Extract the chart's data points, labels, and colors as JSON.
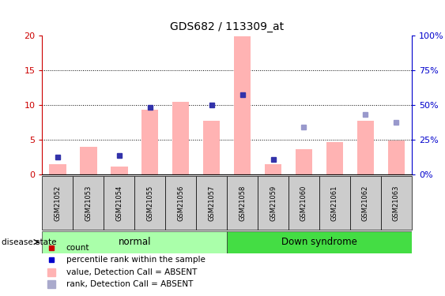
{
  "title": "GDS682 / 113309_at",
  "samples": [
    "GSM21052",
    "GSM21053",
    "GSM21054",
    "GSM21055",
    "GSM21056",
    "GSM21057",
    "GSM21058",
    "GSM21059",
    "GSM21060",
    "GSM21061",
    "GSM21062",
    "GSM21063"
  ],
  "bar_values": [
    1.5,
    4.0,
    1.2,
    9.3,
    10.5,
    7.8,
    19.9,
    1.5,
    3.7,
    4.7,
    7.8,
    4.9
  ],
  "blue_dot_values": [
    2.5,
    null,
    2.8,
    9.7,
    null,
    10.0,
    11.5,
    2.2,
    5.2,
    null,
    8.7,
    null
  ],
  "blue_dot_is_rank": [
    false,
    null,
    false,
    false,
    null,
    false,
    false,
    false,
    true,
    null,
    false,
    null
  ],
  "rank_dot_values": [
    null,
    null,
    null,
    null,
    null,
    null,
    null,
    null,
    6.8,
    null,
    null,
    7.5
  ],
  "ylim_left": [
    0,
    20
  ],
  "ylim_right": [
    0,
    100
  ],
  "yticks_left": [
    0,
    5,
    10,
    15,
    20
  ],
  "yticks_right": [
    0,
    25,
    50,
    75,
    100
  ],
  "ytick_labels_left": [
    "0",
    "5",
    "10",
    "15",
    "20"
  ],
  "ytick_labels_right": [
    "0%",
    "25%",
    "50%",
    "75%",
    "100%"
  ],
  "bar_color": "#ffb3b3",
  "dot_dark_blue": "#4444cc",
  "dot_light_blue": "#aaaacc",
  "left_axis_color": "#cc0000",
  "right_axis_color": "#0000cc",
  "normal_color": "#aaffaa",
  "down_color": "#44dd44",
  "legend_labels": [
    "count",
    "percentile rank within the sample",
    "value, Detection Call = ABSENT",
    "rank, Detection Call = ABSENT"
  ],
  "legend_colors": [
    "#cc0000",
    "#0000cc",
    "#ffb3b3",
    "#aaaacc"
  ]
}
